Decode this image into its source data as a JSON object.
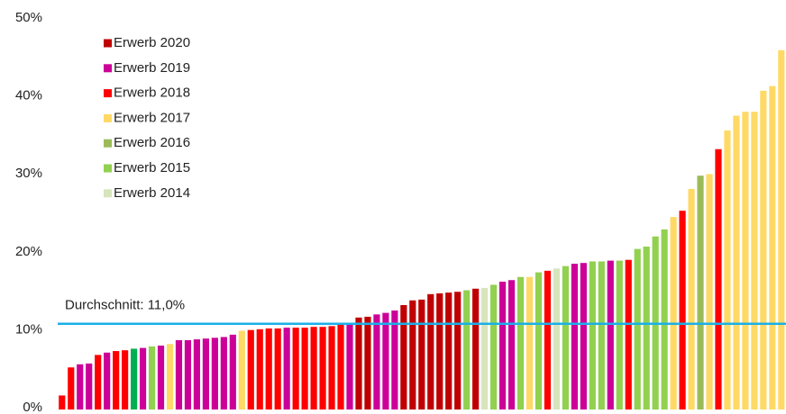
{
  "chart_data": {
    "type": "bar",
    "values": [
      1.8,
      5.4,
      5.8,
      5.9,
      7.0,
      7.3,
      7.5,
      7.6,
      7.8,
      7.9,
      8.1,
      8.2,
      8.4,
      8.9,
      8.9,
      9.0,
      9.1,
      9.2,
      9.3,
      9.6,
      10.1,
      10.2,
      10.3,
      10.4,
      10.4,
      10.5,
      10.5,
      10.5,
      10.6,
      10.6,
      10.7,
      10.9,
      11.0,
      11.8,
      11.9,
      12.2,
      12.4,
      12.7,
      13.4,
      14.0,
      14.1,
      14.8,
      14.9,
      15.0,
      15.1,
      15.3,
      15.5,
      15.6,
      16.0,
      16.4,
      16.6,
      17.0,
      17.0,
      17.6,
      17.8,
      18.1,
      18.4,
      18.7,
      18.8,
      19.0,
      19.0,
      19.1,
      19.1,
      19.2,
      20.6,
      20.9,
      22.2,
      23.1,
      24.7,
      25.5,
      28.3,
      30.0,
      30.2,
      33.4,
      35.8,
      37.7,
      38.2,
      38.2,
      40.9,
      41.5,
      46.1
    ],
    "colors": [
      "#ff0000",
      "#ff0000",
      "#cc0099",
      "#cc0099",
      "#ff0000",
      "#cc0099",
      "#ff0000",
      "#ff0000",
      "#00b050",
      "#cc0099",
      "#92d050",
      "#cc0099",
      "#ffd966",
      "#cc0099",
      "#cc0099",
      "#cc0099",
      "#cc0099",
      "#cc0099",
      "#cc0099",
      "#cc0099",
      "#ffd966",
      "#ff0000",
      "#ff0000",
      "#ff0000",
      "#ff0000",
      "#cc0099",
      "#ff0000",
      "#ff0000",
      "#ff0000",
      "#ff0000",
      "#ff0000",
      "#ff0000",
      "#cc0099",
      "#c00000",
      "#c00000",
      "#cc0099",
      "#cc0099",
      "#cc0099",
      "#c00000",
      "#c00000",
      "#c00000",
      "#c00000",
      "#c00000",
      "#c00000",
      "#c00000",
      "#92d050",
      "#c00000",
      "#d8e4bc",
      "#92d050",
      "#cc0099",
      "#cc0099",
      "#92d050",
      "#ffd966",
      "#92d050",
      "#ff0000",
      "#d8e4bc",
      "#92d050",
      "#cc0099",
      "#cc0099",
      "#92d050",
      "#92d050",
      "#cc0099",
      "#92d050",
      "#ff0000",
      "#92d050",
      "#92d050",
      "#92d050",
      "#92d050",
      "#ffd966",
      "#ff0000",
      "#ffd966",
      "#9bbb59",
      "#ffd966",
      "#ff0000",
      "#ffd966",
      "#ffd966",
      "#ffd966",
      "#ffd966",
      "#ffd966",
      "#ffd966",
      "#ffd966"
    ],
    "legend": [
      {
        "name": "Erwerb 2020",
        "color": "#c00000"
      },
      {
        "name": "Erwerb 2019",
        "color": "#cc0099"
      },
      {
        "name": "Erwerb 2018",
        "color": "#ff0000"
      },
      {
        "name": "Erwerb 2017",
        "color": "#ffd966"
      },
      {
        "name": "Erwerb 2016",
        "color": "#9bbb59"
      },
      {
        "name": "Erwerb 2015",
        "color": "#92d050"
      },
      {
        "name": "Erwerb 2014",
        "color": "#d8e4bc"
      }
    ],
    "average": {
      "value": 11.0,
      "label": "Durchschnitt: 11,0%",
      "color": "#1ab0e8"
    },
    "ylim": [
      0,
      50
    ],
    "yticks": [
      {
        "value": 0,
        "label": "0%"
      },
      {
        "value": 10,
        "label": "10%"
      },
      {
        "value": 20,
        "label": "20%"
      },
      {
        "value": 30,
        "label": "30%"
      },
      {
        "value": 40,
        "label": "40%"
      },
      {
        "value": 50,
        "label": "50%"
      }
    ]
  }
}
